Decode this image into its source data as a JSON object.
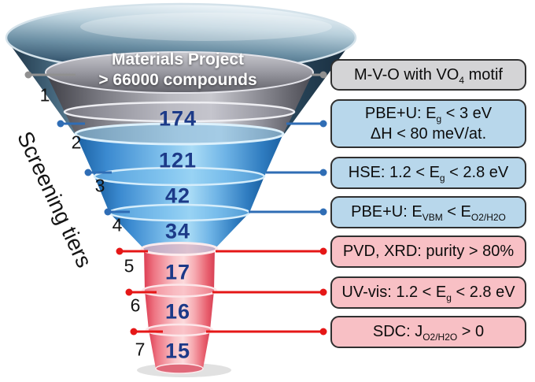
{
  "funnel": {
    "source_line1": "Materials Project",
    "source_line2": "> 66000 compounds",
    "counts": [
      "174",
      "121",
      "42",
      "34",
      "17",
      "16",
      "15"
    ]
  },
  "screening": {
    "axis_label": "Screening tiers",
    "tier_numbers": [
      "1",
      "2",
      "3",
      "4",
      "5",
      "6",
      "7"
    ]
  },
  "criteria_boxes": [
    {
      "lines": [
        "M-V-O with VO_{4} motif"
      ],
      "fill": "#d4d4d6"
    },
    {
      "lines": [
        "PBE+U: E_{g} < 3 eV",
        "ΔH < 80 meV/at."
      ],
      "fill": "#b8d7eb"
    },
    {
      "lines": [
        "HSE: 1.2 < E_{g} < 2.8 eV"
      ],
      "fill": "#b8d7eb"
    },
    {
      "lines": [
        "PBE+U: E_{VBM} < E_{O2/H2O}"
      ],
      "fill": "#b8d7eb"
    },
    {
      "lines": [
        "PVD, XRD: purity > 80%"
      ],
      "fill": "#f8c0c5"
    },
    {
      "lines": [
        "UV-vis: 1.2 < E_{g} < 2.8 eV"
      ],
      "fill": "#f8c0c5"
    },
    {
      "lines": [
        "SDC: J_{O2/H2O} > 0"
      ],
      "fill": "#f8c0c5"
    }
  ],
  "colors": {
    "connector_tier1": "#909090",
    "connector_theory": "#2f6db5",
    "connector_experiment": "#e51717",
    "count_text": "#1c3a88"
  }
}
